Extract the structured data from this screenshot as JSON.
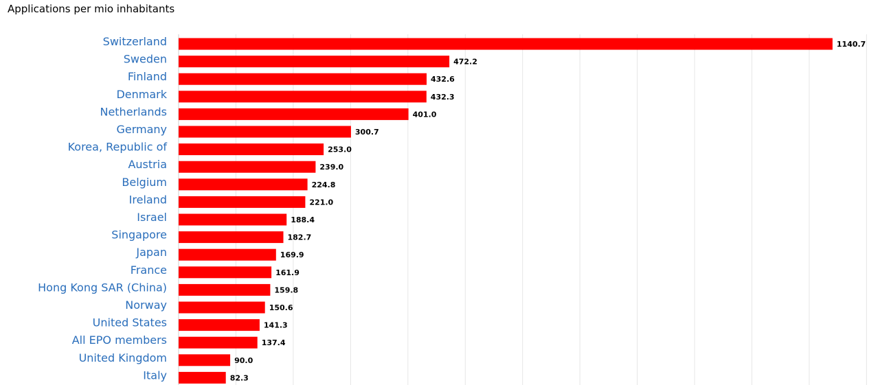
{
  "chart_data": {
    "type": "bar",
    "orientation": "horizontal",
    "title": "Applications per mio inhabitants",
    "categories": [
      "Switzerland",
      "Sweden",
      "Finland",
      "Denmark",
      "Netherlands",
      "Germany",
      "Korea, Republic of",
      "Austria",
      "Belgium",
      "Ireland",
      "Israel",
      "Singapore",
      "Japan",
      "France",
      "Hong Kong SAR (China)",
      "Norway",
      "United States",
      "All EPO members",
      "United Kingdom",
      "Italy"
    ],
    "values": [
      1140.7,
      472.2,
      432.6,
      432.3,
      401.0,
      300.7,
      253.0,
      239.0,
      224.8,
      221.0,
      188.4,
      182.7,
      169.9,
      161.9,
      159.8,
      150.6,
      141.3,
      137.4,
      90.0,
      82.3
    ],
    "xlim": [
      0,
      1200
    ],
    "grid": true,
    "bar_color": "#ff0000",
    "category_label_color": "#2a6ebb",
    "grid_color": "#e6e6e6"
  }
}
